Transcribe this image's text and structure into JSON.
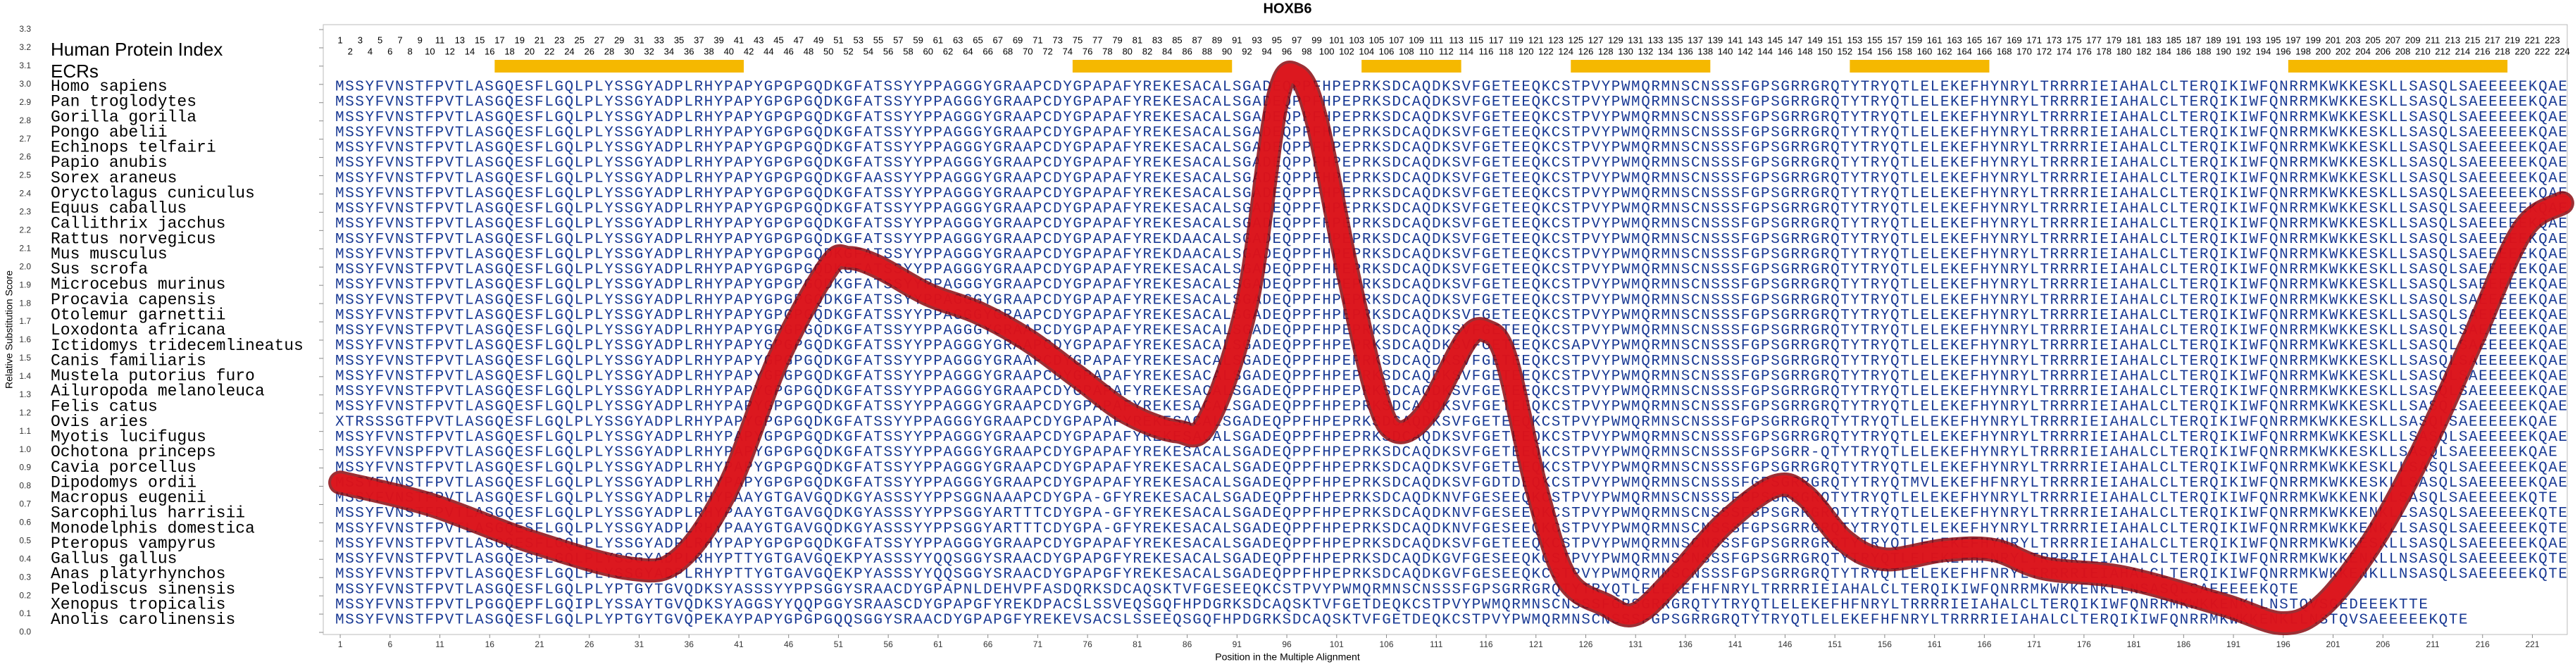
{
  "chart_data": {
    "type": "line",
    "title": "HOXB6",
    "xlabel": "Position in the Multiple Alignment",
    "ylabel": "Relative Substitution Score",
    "protein_index_label": "Human Protein Index",
    "ecr_label": "ECRs",
    "xlim": [
      -0.7,
      224.5
    ],
    "ylim": [
      0,
      3.3
    ],
    "yticks": [
      {
        "value": 0,
        "label": "0.0"
      },
      {
        "value": 0.1,
        "label": "0.1"
      },
      {
        "value": 0.2,
        "label": "0.2"
      },
      {
        "value": 0.3,
        "label": "0.3"
      },
      {
        "value": 0.4,
        "label": "0.4"
      },
      {
        "value": 0.5,
        "label": "0.5"
      },
      {
        "value": 0.6,
        "label": "0.6"
      },
      {
        "value": 0.7,
        "label": "0.7"
      },
      {
        "value": 0.8,
        "label": "0.8"
      },
      {
        "value": 0.9,
        "label": "0.9"
      },
      {
        "value": 1,
        "label": "1.0"
      },
      {
        "value": 1.1,
        "label": "1.1"
      },
      {
        "value": 1.2,
        "label": "1.2"
      },
      {
        "value": 1.3,
        "label": "1.3"
      },
      {
        "value": 1.4,
        "label": "1.4"
      },
      {
        "value": 1.5,
        "label": "1.5"
      },
      {
        "value": 1.6,
        "label": "1.6"
      },
      {
        "value": 1.7,
        "label": "1.7"
      },
      {
        "value": 1.8,
        "label": "1.8"
      },
      {
        "value": 1.9,
        "label": "1.9"
      },
      {
        "value": 2,
        "label": "2.0"
      },
      {
        "value": 2.1,
        "label": "2.1"
      },
      {
        "value": 2.2,
        "label": "2.2"
      },
      {
        "value": 2.3,
        "label": "2.3"
      },
      {
        "value": 2.4,
        "label": "2.4"
      },
      {
        "value": 2.5,
        "label": "2.5"
      },
      {
        "value": 2.6,
        "label": "2.6"
      },
      {
        "value": 2.7,
        "label": "2.7"
      },
      {
        "value": 2.8,
        "label": "2.8"
      },
      {
        "value": 2.9,
        "label": "2.9"
      },
      {
        "value": 3,
        "label": "3.0"
      },
      {
        "value": 3.1,
        "label": "3.1"
      },
      {
        "value": 3.2,
        "label": "3.2"
      },
      {
        "value": 3.3,
        "label": "3.3"
      }
    ],
    "xticks": [
      1,
      6,
      11,
      16,
      21,
      26,
      31,
      36,
      41,
      46,
      51,
      56,
      61,
      66,
      71,
      76,
      81,
      86,
      91,
      96,
      101,
      106,
      111,
      116,
      121,
      126,
      131,
      136,
      141,
      146,
      151,
      156,
      161,
      166,
      171,
      176,
      181,
      186,
      191,
      196,
      201,
      206,
      211,
      216,
      221
    ],
    "human_index": [
      1,
      2,
      3,
      4,
      5,
      6,
      7,
      8,
      9,
      10,
      11,
      12,
      13,
      14,
      15,
      16,
      17,
      18,
      19,
      20,
      21,
      22,
      23,
      24,
      25,
      26,
      27,
      28,
      29,
      30,
      31,
      32,
      33,
      34,
      35,
      36,
      37,
      38,
      39,
      40,
      41,
      42,
      43,
      44,
      45,
      46,
      47,
      48,
      49,
      50,
      51,
      52,
      53,
      54,
      55,
      56,
      57,
      58,
      59,
      60,
      61,
      62,
      63,
      64,
      65,
      66,
      67,
      68,
      69,
      70,
      71,
      72,
      73,
      74,
      75,
      76,
      77,
      78,
      79,
      80,
      81,
      82,
      83,
      84,
      85,
      86,
      87,
      88,
      89,
      90,
      91,
      92,
      93,
      94,
      95,
      96,
      97,
      98,
      99,
      100,
      101,
      102,
      103,
      104,
      105,
      106,
      107,
      108,
      109,
      110,
      111,
      112,
      113,
      114,
      115,
      116,
      117,
      118,
      119,
      120,
      121,
      122,
      123,
      124,
      125,
      126,
      127,
      128,
      129,
      130,
      131,
      132,
      133,
      134,
      135,
      136,
      137,
      138,
      139,
      140,
      141,
      142,
      143,
      144,
      145,
      146,
      147,
      148,
      149,
      150,
      151,
      152,
      153,
      154,
      155,
      156,
      157,
      158,
      159,
      160,
      161,
      162,
      163,
      164,
      165,
      166,
      167,
      168,
      169,
      170,
      171,
      172,
      173,
      174,
      175,
      176,
      177,
      178,
      179,
      180,
      181,
      182,
      183,
      184,
      185,
      186,
      187,
      188,
      189,
      190,
      191,
      192,
      193,
      194,
      195,
      196,
      197,
      198,
      199,
      200,
      201,
      202,
      203,
      204,
      205,
      206,
      207,
      208,
      209,
      210,
      211,
      212,
      213,
      214,
      215,
      216,
      217,
      218,
      219,
      220,
      221,
      222,
      223,
      224
    ],
    "ecrs": [
      [
        17,
        41
      ],
      [
        75,
        90
      ],
      [
        104,
        113
      ],
      [
        125,
        138
      ],
      [
        153,
        166
      ],
      [
        197,
        218
      ]
    ],
    "ecr_color": "#f5b800",
    "sequence_color": "#1a3a94",
    "x": [
      1,
      10,
      20,
      30,
      35,
      40,
      45,
      50,
      52,
      55,
      60,
      65,
      70,
      75,
      80,
      85,
      88,
      92,
      95,
      97,
      99,
      102,
      105,
      107,
      110,
      114,
      116,
      118,
      121,
      124,
      128,
      131,
      135,
      140,
      145,
      148,
      152,
      156,
      162,
      167,
      172,
      180,
      190,
      196,
      200,
      205,
      210,
      215,
      220,
      224
    ],
    "series": [
      {
        "color": "#e8141c",
        "values": [
          0.82,
          0.7,
          0.5,
          0.35,
          0.4,
          0.8,
          1.5,
          2.0,
          2.05,
          2.0,
          1.85,
          1.75,
          1.6,
          1.4,
          1.2,
          1.1,
          1.15,
          1.8,
          2.9,
          3.05,
          2.8,
          2.0,
          1.3,
          1.1,
          1.2,
          1.6,
          1.65,
          1.5,
          0.8,
          0.3,
          0.15,
          0.1,
          0.3,
          0.6,
          0.8,
          0.75,
          0.5,
          0.4,
          0.45,
          0.45,
          0.35,
          0.3,
          0.15,
          0.05,
          0.15,
          0.5,
          1.0,
          1.6,
          2.2,
          2.35
        ]
      }
    ],
    "alignment": [
      {
        "species": "Homo sapiens",
        "sequence": "MSSYFVNSTFPVTLASGQESFLGQLPLYSSGYADPLRHYPAPYGPGPGQDKGFATSSYYPPAGGGYGRAAPCDYGPAPAFYREKESACALSGADEQPPFHPEPRKSDCAQDKSVFGETEEQKCSTPVYPWMQRMNSCNSSSFGPSGRRGRQTYTRYQTLELEKEFHYNRYLTRRRRIEIAHALCLTERQIKIWFQNRRMKWKKESKLLSASQLSAEEEEEKQAE"
      },
      {
        "species": "Pan troglodytes",
        "sequence": "MSSYFVNSTFPVTLASGQESFLGQLPLYSSGYADPLRHYPAPYGPGPGQDKGFATSSYYPPAGGGYGRAAPCDYGPAPAFYREKESACALSGADEQPPFHPEPRKSDCAQDKSVFGETEEQKCSTPVYPWMQRMNSCNSSSFGPSGRRGRQTYTRYQTLELEKEFHYNRYLTRRRRIEIAHALCLTERQIKIWFQNRRMKWKKESKLLSASQLSAEEEEEKQAE"
      },
      {
        "species": "Gorilla gorilla",
        "sequence": "MSSYFVNSTFPVTLASGQESFLGQLPLYSSGYADPLRHYPAPYGPGPGQDKGFATSSYYPPAGGGYGRAAPCDYGPAPAFYREKESACALSGADEQPPFHPEPRKSDCAQDKSVFGETEEQKCSTPVYPWMQRMNSCNSSSFGPSGRRGRQTYTRYQTLELEKEFHYNRYLTRRRRIEIAHALCLTERQIKIWFQNRRMKWKKESKLLSASQLSAEEEEEKQAE"
      },
      {
        "species": "Pongo abelii",
        "sequence": "MSSYFVNSTFPVTLASGQESFLGQLPLYSSGYADPLRHYPAPYGPGPGQDKGFATSSYYPPAGGGYGRAAPCDYGPAPAFYREKESACALSGADEQPPFHPEPRKSDCAQDKSVFGETEEQKCSTPVYPWMQRMNSCNSSSFGPSGRRGRQTYTRYQTLELEKEFHYNRYLTRRRRIEIAHALCLTERQIKIWFQNRRMKWKKESKLLSASQLSAEEEEEKQAE"
      },
      {
        "species": "Echinops telfairi",
        "sequence": "MSSYFVNSTFPVTLASGQESFLGQLPLYSSGYADPLRHYPAPYGPGPGQDKGFATSSYYPPAGGGYGRAAPCDYGPAPAFYREKESACALSGADEQPPFHPEPRKSDCAQDKSVFGETEEQKCSTPVYPWMQRMNSCNSSSFGPSGRRGRQTYTRYQTLELEKEFHYNRYLTRRRRIEIAHALCLTERQIKIWFQNRRMKWKKESKLLSASQLSAEEEEEKQAE"
      },
      {
        "species": "Papio anubis",
        "sequence": "MSSYFVNSTFPVTLASGQESFLGQLPLYSSGYADPLRHYPAPYGPGPGQDKGFATSSYYPPAGGGYGRAAPCDYGPAPAFYREKESACALSGADEQPPFHPEPRKSDCAQDKSVFGETEEQKCSTPVYPWMQRMNSCNSSSFGPSGRRGRQTYTRYQTLELEKEFHYNRYLTRRRRIEIAHALCLTERQIKIWFQNRRMKWKKESKLLSASQLSAEEEEEKQAE"
      },
      {
        "species": "Sorex araneus",
        "sequence": "MSSYFVNSTFPVTLASGQESFLGQLPLYSSGYADPLRHYPAPYGPGPGQDKGFAASSYYPPAGGGYGRAAPCDYGPAPAFYREKESACALSGADEQPPFHPEPRKSDCAQDKSVFGETEEQKCSTPVYPWMQRMNSCNSSSFGPSGRRGRQTYTRYQTLELEKEFHYNRYLTRRRRIEIAHALCLTERQIKIWFQNRRMKWKKESKLLSASQLSAEEEEEKQAE"
      },
      {
        "species": "Oryctolagus cuniculus",
        "sequence": "MSSYFVNSTFPVTLASGQESFLGQLPLYSSGYADPLRHYPAPYGPGPGQDKGFATSSYYPPAGGGYGRAAPCDYGPAPAFYREKESACALSGADEQPPFHPEPRKSDCAQDKSVFGETEEQKCSTPVYPWMQRMNSCNSSSFGPSGRRGRQTYTRYQTLELEKEFHYNRYLTRRRRIEIAHALCLTERQIKIWFQNRRMKWKKESKLLSASQLSAEEEEEKQAE"
      },
      {
        "species": "Equus caballus",
        "sequence": "MSSYFVNSTFPVTLASGQESFLGQLPLYSSGYADPLRHYPAPYGPGPGQDKGFATSSYYPPAGGGYGRAAPCDYGPAPAFYREKESACALSGADEQPPFHPEPRKSDCAQDKSVFGETEEQKCSTPVYPWMQRMNSCNSSSFGPSGRRGRQTYTRYQTLELEKEFHYNRYLTRRRRIEIAHALCLTERQIKIWFQNRRMKWKKESKLLSASQLSAEEEEEKQAE"
      },
      {
        "species": "Callithrix jacchus",
        "sequence": "MSSYFVNSTFPVTLASGQESFLGQLPLYSSGYADPLRHYPAPYGPGPGQDKGFATSSYYPPAGGGYGRAAPCDYGPAPAFYREKESACALSGADEQPPFHPEPRKSDCAQDKSVFGETEEQKCSTPVYPWMQRMNSCNSSSFGPSGRRGRQTYTRYQTLELEKEFHYNRYLTRRRRIEIAHALCLTERQIKIWFQNRRMKWKKESKLLSASQLSAEEEEEKQAE"
      },
      {
        "species": "Rattus norvegicus",
        "sequence": "MSSYFVNSTFPVTLASGQESFLGQLPLYSSGYADPLRHYPAPYGPGPGQDKGFATSSYYPPAGGGYGRAAPCDYGPAPAFYREKDAACALSGADEQPPFHPEPRKSDCAQDKSVFGETEEQKCSTPVYPWMQRMNSCNSSSFGPSGRRGRQTYTRYQTLELEKEFHYNRYLTRRRRIEIAHALCLTERQIKIWFQNRRMKWKKESKLLSASQLSAEEEEEKQAE"
      },
      {
        "species": "Mus musculus",
        "sequence": "MSSYFVNSTFPVTLASGQESFLGQLPLYSSGYADPLRHYPAPYGPGPGQDKGFATSSYYPPAGGGYGRAAPCDYGPAPAFYREKDAACALSGADEQPPFHPEPRKSDCAQDKSVFGETEEQKCSTPVYPWMQRMNSCNSSSFGPSGRRGRQTYTRYQTLELEKEFHYNRYLTRRRRIEIAHALCLTERQIKIWFQNRRMKWKKESKLLSASQLSAEEEEEKQAE"
      },
      {
        "species": "Sus scrofa",
        "sequence": "MSSYFVNSTFPVTLASGQESFLGQLPLYSSGYADPLRHYPAPYGPGPGQDKGFATSSYYPPAGGGYGRAAPCDYGPAPAFYREKESACALSGADEQPPFHPEPRKSDCAQDKSVFGETEEQKCSTPVYPWMQRMNSCNSSSFGPSGRRGRQTYTRYQTLELEKEFHYNRYLTRRRRIEIAHALCLTERQIKIWFQNRRMKWKKESKLLSASQLSAEEEEEKQAE"
      },
      {
        "species": "Microcebus murinus",
        "sequence": "MSSYFVNSTFPVTLASGQESFLGQLPLYSSGYADPLRHYPAPYGPGPGQDKGFATSSYYPPAGGGYGRAAPCDYGPAPAFYREKESACALSGADEQPPFHPEPRKSDCAQDKSVFGETEEQKCSTPVYPWMQRMNSCNSSSFGPSGRRGRQTYTRYQTLELEKEFHYNRYLTRRRRIEIAHALCLTERQIKIWFQNRRMKWKKESKLLSASQLSAEEEEEKQAE"
      },
      {
        "species": "Procavia capensis",
        "sequence": "MSSYFVNSTFPVTLASGQESFLGQLPLYSSGYADPLRHYPAPYGPGPGQDKGFATSSYYPPAGGGYGRAAPCDYGPAPAFYREKESACALSGADEQPPFHPEPRKSDCAQDKSVFGETEEQKCSTPVYPWMQRMNSCNSSSFGPSGRRGRQTYTRYQTLELEKEFHYNRYLTRRRRIEIAHALCLTERQIKIWFQNRRMKWKKESKLLSASQLSAEEEEEKQAE"
      },
      {
        "species": "Otolemur garnettii",
        "sequence": "MSSYFVNSTFPVTLASGQESFLGQLPLYSSGYADPLRHYPAPYGPGPGQDKGFATSSYYPPAGGGYGRAAPCDYGPAPAFYREKESACALSGADEQPPFHPEPRKSDCAQDKSVFGETEEQKCSTPVYPWMQRMNSCNSSSFGPSGRRGRQTYTRYQTLELEKEFHYNRYLTRRRRIEIAHALCLTERQIKIWFQNRRMKWKKESKLLSASQLSAEEEEEKQAE"
      },
      {
        "species": "Loxodonta africana",
        "sequence": "MSSYFVNSTFPVTLASGQESFLGQLPLYSSGYADPLRHYPAPYGPGPGQDKGFATSSYYPPAGGGYGRAAPCDYGPAPAFYREKESACALSGADEQPPFHPEPRKSDCAQDKSVFGETEEQKCSTPVYPWMQRMNSCNSSSFGPSGRRGRQTYTRYQTLELEKEFHYNRYLTRRRRIEIAHALCLTERQIKIWFQNRRMKWKKESKLLSASQLSAEEEEEKQAE"
      },
      {
        "species": "Ictidomys tridecemlineatus",
        "sequence": "MSSYFVNSTFPVTLASGQESFLGQLPLYSSGYADPLRHYPAPYGPGPGQDKGFATSSYYPPAGGGYGRAAPCDYGPAPAFYREKESACALSGADEQPPFHPEPRKSDCAQDKSVFGETEEQKCSAPVYPWMQRMNSCNSSSFGPSGRRGRQTYTRYQTLELEKEFHYNRYLTRRRRIEIAHALCLTERQIKIWFQNRRMKWKKESKLLSASQLSAEEEEEKQAE"
      },
      {
        "species": "Canis familiaris",
        "sequence": "MSSYFVNSTFPVTLASGQESFLGQLPLYSSGYADPLRHYPAPYGPGPGQDKGFATSSYYPPAGGGYGRAAPCDYGPAPAFYREKESACALSGADEQPPFHPEPRKSDCAQDKSVFGETEEQKCSTPVYPWMQRMNSCNSSSFGPSGRRGRQTYTRYQTLELEKEFHYNRYLTRRRRIEIAHALCLTERQIKIWFQNRRMKWKKESKLLSASQLSAEEEEEKQAE"
      },
      {
        "species": "Mustela putorius furo",
        "sequence": "MSSYFVNSTFPVTLASGQESFLGQLPLYSSGYADPLRHYPAPYGPGPGQDKGFATSSYYPPAGGGYGRAAPCDYGPAPAFYREKESACALSGADEQPPFHPEPRKSDCAQDKSVFGETEEQKCSTPVYPWMQRMNSCNSSSFGPSGRRGRQTYTRYQTLELEKEFHYNRYLTRRRRIEIAHALCLTERQIKIWFQNRRMKWKKESKLLSASQLSAEEEEEKQAE"
      },
      {
        "species": "Ailuropoda melanoleuca",
        "sequence": "MSSYFVNSTFPVTLASGQESFLGQLPLYSSGYADPLRHYPAPYGPGPGQDKGFATSSYYPPAGGGYGRAAPCDYGPAPAFYREKESACALSGADEQPPFHPEPRKSDCAQDKSVFGETEEQKCSTPVYPWMQRMNSCNSSSFGPSGRRGRQTYTRYQTLELEKEFHYNRYLTRRRRIEIAHALCLTERQIKIWFQNRRMKWKKESKLLSASQLSAEEEEEKQAE"
      },
      {
        "species": "Felis catus",
        "sequence": "MSSYFVNSTFPVTLASGQESFLGQLPLYSSGYADPLRHYPAPYGPGPGQDKGFATSSYYPPAGGGYGRAAPCDYGPAPAFYREKESACALSGADEQPPFHPEPRKSDCAQDKSVFGETEEQKCSTPVYPWMQRMNSCNSSSFGPSGRRGRQTYTRYQTLELEKEFHYNRYLTRRRRIEIAHALCLTERQIKIWFQNRRMKWKKESKLLSASQLSAEEEEEKQAE"
      },
      {
        "species": "Ovis aries",
        "sequence": "XTRSSSGTFPVTLASGQESFLGQLPLYSSGYADPLRHYPAPYGPGPGQDKGFATSSYYPPAGGGYGRAAPCDYGPAPAFYREKESACALSGADEQPPFHPEPRKSDCAQDKSVFGETEEQKCSTPVYPWMQRMNSCNSSSFGPSGRRGRQTYTRYQTLELEKEFHYNRYLTRRRRIEIAHALCLTERQIKIWFQNRRMKWKKESKLLSASQLSAEEEEEKQAE"
      },
      {
        "species": "Myotis lucifugus",
        "sequence": "MSSYFVNSTFPVTLASGQESFLGQLPLYSSGYADPLRHYPAPYGPGPGQDKGFATSSYYPPAGGGYGRAAPCDYGPAPAFYREKESACALSGADEQPPFHPEPRKSDCAQDKSVFGETEEQKCSTPVYPWMQRMNSCNSSSFGPSGRRGRQTYTRYQTLELEKEFHYNRYLTRRRRIEIAHALCLTERQIKIWFQNRRMKWKKESKLLSASQLSAEEEEEKQAE"
      },
      {
        "species": "Ochotona princeps",
        "sequence": "MSSYFVNSPFPVTLASGQESFLGQLPLYSSGYADPLRHYPAPYGPGPGQDKGFATSSYYPPAGGGYGRAAPCDYGPAPAFYREKESACALSGADEQPPFHPEPRKSDCAQDKSVFGETEEQKCSTPVYPWMQRMNSCNSSSFGPSGRR-QTYTRYQTLELEKEFHYNRYLTRRRRIEIAHALCLTERQIKIWFQNRRMKWKKESKLLSASQLSAEEEEEKQAE"
      },
      {
        "species": "Cavia porcellus",
        "sequence": "MSSYFVNSTFPVTLASGQESFLGQLPLYSSGYADPLRHYPAPYGPGPGQDKGFATSSYYPPAGGGYGRAAPCDYGPAPAFYREKESACALSGADEQPPFHPEPRKSDCAQDKSVFGETEEQKCSTPVYPWMQRMNSCNSSSFGPSGRRGRQTYTRYQTLELEKEFHYNRYLTRRRRIEIAHALCLTERQIKIWFQNRRMKWKKESKLLSASQLSAEEEEEKQAE"
      },
      {
        "species": "Dipodomys ordii",
        "sequence": "MSSYFVNSTFPVTLASGQESFLGQLPLYSSGYADPLRHYPAPYGPGPGQDKGFATSSYYPPAGGGYGRAAPCDYGPAPAFYREKESACALSGADEQPPFHPEPRKSDCAQDKSVFGDTDEQKCSTPVYPWMQRMNSCNSSSFGPSGRRGRQTYTRYQTMVLEKEFHFNRYLTRRRRIEIAHALCLTERQIKIWFQNRRMKWKKESKLLSASQLSAEEEEEKQAE"
      },
      {
        "species": "Macropus eugenii",
        "sequence": "MSSYFVNSTFPVTLASGQESFLGQLPLYSSGYADPLRHYPAAYGTGAVGQDKGYASSSYYPPSGGNAAAPCDYGPA-GFYREKESACALSGADEQPPFHPEPRKSDCAQDKNVFGESEEQKCSTPVYPWMQRMNSCNSSSFGPSGRRGRQTYTRYQTLELEKEFHYNRYLTRRRRIEIAHALCLTERQIKIWFQNRRMKWKKENKLLSASQLSAEEEEEKQTE"
      },
      {
        "species": "Sarcophilus harrisii",
        "sequence": "MSSYFVNSTFPVTLASGQESFLGQLPLYSSGYADPLRHYPAAYGTGAVGQDKGYASSSYYPPSGGYARTTTCDYGPA-GFYREKESACALSGADEQPPFHPEPRKSDCAQDKNVFGESEEQKCSTPVYPWMQRMNSCNSSSFGPSGRRGRQTYTRYQTLELEKEFHYNRYLTRRRRIEIAHALCLTERQIKIWFQNRRMKWKKENKLLSASQLSAEEEEEKQTE"
      },
      {
        "species": "Monodelphis domestica",
        "sequence": "MSSYFVNSTFPVTLASGQESFLGQLPLYSSGYADPLRHYPAAYGTGAVGQDKGYASSSYYPPSGGYARTTTCDYGPA-GFYREKESACALSGADEQPPFHPEPRKSDCAQDKNVFGESEEQKCSTPVYPWMQRMNSCNSSSFGPSGRRGRQTYTRYQTLELEKEFHYNRYLTRRRRIEIAHALCLTERQIKIWFQNRRMKWKKENKLLSASQLSAEEEEEKQTE"
      },
      {
        "species": "Pteropus vampyrus",
        "sequence": "MSSYFVNSTFPVTLASGQESFLGQLPLYSSGYADPLRHYPAPYGPGPGQDKGFATSSYYPPAGGGYGRAAPCDYGPAPAFYREKESACALSGADEQPPFHPEPRKSDCAQDKSVFGETEEQKCSTPVYPWMQRMNSCNSSSFGPSGRRGRQTYTRYQTLELEKEFHYNRYLTRRRRIEIAHALCLTERQIKIWFQNRRMKWKKESKLLSASQLSAEEEEEKQAE"
      },
      {
        "species": "Gallus gallus",
        "sequence": "MSSYFVNSTFPVTLASGQESFLGQLPLYSSGYADPLRHYPTTYGTGAVGQEKPYASSSYYQQSGGYSRAACDYGPAPGFYREKESACALSGADEQPPFHPEPRKSDCAQDKGVFGESEEQKCSTPVYPWMQRMNSCNSSSFGPSGRRGRQTYTRYQTLELEKEFHFNRYLTRRRRIEIAHALCLTERQIKIWFQNRRMKWKKENKLLNSASQLSAEEEEEKQTE"
      },
      {
        "species": "Anas platyrhynchos",
        "sequence": "MSSYFVNSTFPVTLASGQESFLGQLPLYSSGYADPLRHYPTTYGTGAVGQEKPYASSSYYQQSGGYSRAACDYGPAPGFYREKESACALSGADEQPPFHPEPRKSDCAQDKGVFGESEEQKCSTPVYPWMQRMNSCNSSSFGPSGRRGRQTYTRYQTLELEKEFHFNRYLTRRRRIEIAHALCLTERQIKIWFQNRRMKWKKENKLLNSASQLSAEEEEEKQTE"
      },
      {
        "species": "Pelodiscus sinensis",
        "sequence": "MSSYFVNSTFPVTLASGQESFLGQLPLYPTGYTGVQDKSYASSSYYPPSGGYSRAACDYGPAPNLDEHVPFASDQRKSDCAQSKTVFGESEEQKCSTPVYPWMQRMNSCNSSSFGPSGRRGRQTYTRYQTLELEKEFHFNRYLTRRRRIEIAHALCLTERQIKIWFQNRRMKWKKENKLLNSASQLSAEEEEEKQTE"
      },
      {
        "species": "Xenopus tropicalis",
        "sequence": "MSSYFVNSTFPVTLPGGQEPFLGQIPLYSSAYTGVQDKSYAGGSYYQQPGGYSRAASCDYGPAPGFYREKDPACSLSSVEQSGQFHPDGRKSDCAQSKTVFGETDEQKCSTPVYPWMQRMNSCNSSSFGPSGRRGRQTYTRYQTLELEKEFHFNRYLTRRRRIEIAHALCLTERQIKIWFQNRRMKWKKENKLLNSTQVSGEDEEEKTTE"
      },
      {
        "species": "Anolis carolinensis",
        "sequence": "MSSYFVNSTFPVTLASGQESFLGQLPLYPTGYTGVQPEKAYPAPYGPGPGQQSGGYSRAACDYGPAPGFYREKEVSACSLSSEEQSGQFHPDGRKSDCAQSKTVFGETDEQKCSTPVYPWMQRMNSCNSSSFGPSGRRGRQTYTRYQTLELEKEFHFNRYLTRRRRIEIAHALCLTERQIKIWFQNRRMKWKKENKLLNSTQVSAEEEEEKQTE"
      }
    ]
  }
}
